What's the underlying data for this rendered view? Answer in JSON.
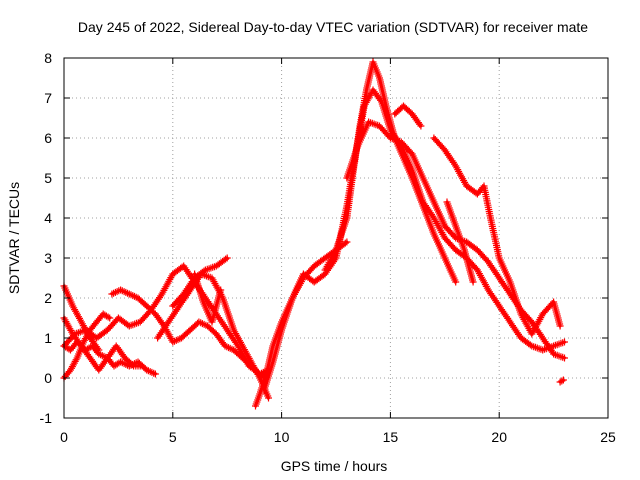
{
  "chart_data": {
    "type": "scatter",
    "title": "Day 245 of 2022, Sidereal Day-to-day VTEC variation (SDTVAR) for receiver mate",
    "xlabel": "GPS time / hours",
    "ylabel": "SDTVAR / TECUs",
    "xlim": [
      0,
      25
    ],
    "ylim": [
      -1,
      8
    ],
    "xticks": [
      0,
      5,
      10,
      15,
      20,
      25
    ],
    "yticks": [
      -1,
      0,
      1,
      2,
      3,
      4,
      5,
      6,
      7,
      8
    ],
    "xtick_labels": [
      "0",
      "5",
      "10",
      "15",
      "20",
      "25"
    ],
    "ytick_labels": [
      "-1",
      "0",
      "1",
      "2",
      "3",
      "4",
      "5",
      "6",
      "7",
      "8"
    ],
    "grid": true,
    "marker": "plus",
    "legend": "none",
    "series": [
      {
        "name": "track-a",
        "color": "#ff0000",
        "x": [
          0.0,
          0.3,
          0.6,
          1.0,
          1.3,
          1.6,
          2.0,
          2.3,
          2.6,
          3.0,
          3.4,
          3.8,
          4.2
        ],
        "y": [
          0.8,
          0.7,
          0.9,
          0.7,
          0.8,
          0.6,
          0.5,
          0.3,
          0.4,
          0.3,
          0.4,
          0.2,
          0.1
        ]
      },
      {
        "name": "track-b",
        "color": "#ff0000",
        "x": [
          0.0,
          0.4,
          0.8,
          1.2,
          1.6,
          2.0,
          2.4,
          2.8,
          3.2,
          3.6
        ],
        "y": [
          1.5,
          1.1,
          0.8,
          0.5,
          0.2,
          0.5,
          0.8,
          0.5,
          0.3,
          0.3
        ]
      },
      {
        "name": "track-c",
        "color": "#ff0000",
        "x": [
          0.0,
          0.3,
          0.6,
          0.9,
          1.2,
          1.5,
          1.8,
          2.1
        ],
        "y": [
          0.0,
          0.2,
          0.5,
          0.9,
          1.2,
          1.4,
          1.6,
          1.5
        ]
      },
      {
        "name": "track-d",
        "color": "#ff0000",
        "x": [
          0.0,
          0.4,
          0.8,
          1.2,
          1.6
        ],
        "y": [
          2.3,
          1.8,
          1.4,
          1.0,
          0.7
        ]
      },
      {
        "name": "track-e",
        "color": "#ff0000",
        "x": [
          0.0,
          0.5,
          1.0,
          1.5,
          2.0,
          2.5,
          3.0,
          3.5,
          4.0,
          4.5,
          5.0,
          5.5,
          6.0,
          6.5,
          7.0,
          7.5,
          8.0,
          8.5,
          9.0,
          9.3
        ],
        "y": [
          0.8,
          1.1,
          1.2,
          1.0,
          1.2,
          1.5,
          1.3,
          1.4,
          1.7,
          2.1,
          2.6,
          2.8,
          2.4,
          2.0,
          1.6,
          1.2,
          0.8,
          0.3,
          0.1,
          0.0
        ]
      },
      {
        "name": "track-f",
        "color": "#ff0000",
        "x": [
          2.2,
          2.6,
          3.0,
          3.4,
          3.8,
          4.2,
          4.6,
          5.0,
          5.4,
          5.8,
          6.2,
          6.6,
          7.0,
          7.4,
          7.8,
          8.2,
          8.6,
          9.0,
          9.4
        ],
        "y": [
          2.1,
          2.2,
          2.1,
          2.0,
          1.8,
          1.6,
          1.3,
          0.9,
          1.0,
          1.2,
          1.4,
          1.3,
          1.1,
          0.8,
          0.7,
          0.5,
          0.3,
          0.1,
          0.2
        ]
      },
      {
        "name": "track-g",
        "color": "#ff0000",
        "x": [
          4.3,
          4.8,
          5.3,
          5.8,
          6.3,
          6.8,
          7.3,
          7.8,
          8.2,
          8.6,
          9.0,
          9.4
        ],
        "y": [
          1.0,
          1.4,
          1.8,
          2.2,
          2.6,
          2.5,
          2.0,
          1.2,
          0.8,
          0.4,
          0.0,
          -0.5
        ]
      },
      {
        "name": "track-h",
        "color": "#ff0000",
        "x": [
          5.0,
          5.5,
          6.0,
          6.5,
          7.0,
          7.5
        ],
        "y": [
          1.8,
          2.1,
          2.5,
          2.7,
          2.8,
          3.0
        ]
      },
      {
        "name": "track-i",
        "color": "#ff0000",
        "x": [
          6.0,
          6.4,
          6.8,
          7.2
        ],
        "y": [
          2.6,
          1.9,
          1.4,
          2.2
        ]
      },
      {
        "name": "track-j",
        "color": "#ff0000",
        "x": [
          8.8,
          9.0,
          9.3,
          9.6,
          10.0,
          10.5,
          11.0,
          11.5,
          12.0,
          12.5,
          13.0
        ],
        "y": [
          -0.7,
          -0.4,
          0.1,
          0.8,
          1.4,
          2.0,
          2.5,
          2.8,
          3.0,
          3.2,
          3.4
        ]
      },
      {
        "name": "track-k",
        "color": "#ff0000",
        "x": [
          9.2,
          9.6,
          10.0,
          10.5,
          11.0,
          11.5,
          12.0,
          12.5,
          13.0,
          13.4,
          13.8,
          14.2,
          14.6,
          15.0,
          15.5,
          16.0,
          16.5,
          17.0,
          17.5,
          18.0,
          18.5,
          19.0,
          19.5,
          20.0,
          20.5,
          21.0,
          21.5,
          22.0,
          22.5,
          23.0
        ],
        "y": [
          -0.3,
          0.4,
          1.2,
          2.0,
          2.6,
          2.4,
          2.6,
          3.0,
          4.3,
          5.6,
          6.8,
          7.2,
          6.9,
          6.2,
          5.8,
          5.2,
          4.4,
          4.0,
          3.5,
          3.2,
          3.0,
          2.7,
          2.2,
          1.8,
          1.4,
          1.0,
          0.8,
          0.7,
          0.8,
          0.9
        ]
      },
      {
        "name": "track-l",
        "color": "#ff0000",
        "x": [
          12.0,
          12.5,
          13.0,
          13.3,
          13.6,
          13.9,
          14.2,
          14.5,
          14.8,
          15.2,
          15.6,
          16.0,
          16.5,
          17.0,
          17.5,
          18.0
        ],
        "y": [
          2.7,
          3.2,
          4.0,
          5.2,
          6.3,
          7.2,
          7.9,
          7.5,
          6.8,
          6.0,
          5.5,
          5.0,
          4.3,
          3.6,
          3.0,
          2.4
        ]
      },
      {
        "name": "track-m",
        "color": "#ff0000",
        "x": [
          13.0,
          13.5,
          14.0,
          14.5,
          15.0,
          15.5,
          16.0,
          16.5,
          17.0,
          17.5,
          18.0,
          18.5,
          19.0,
          19.5,
          20.0,
          20.5,
          21.0,
          21.5,
          22.0,
          22.5,
          23.0
        ],
        "y": [
          5.0,
          5.8,
          6.4,
          6.3,
          6.0,
          5.9,
          5.6,
          5.0,
          4.4,
          3.8,
          3.5,
          3.4,
          3.2,
          2.9,
          2.5,
          2.1,
          1.7,
          1.4,
          1.0,
          0.6,
          0.5
        ]
      },
      {
        "name": "track-n",
        "color": "#ff0000",
        "x": [
          15.2,
          15.6,
          16.0,
          16.4
        ],
        "y": [
          6.6,
          6.8,
          6.6,
          6.3
        ]
      },
      {
        "name": "track-o",
        "color": "#ff0000",
        "x": [
          17.0,
          17.5,
          18.0,
          18.5,
          19.0,
          19.3,
          19.6,
          20.0,
          20.5,
          21.0,
          21.5,
          22.0,
          22.5,
          22.8
        ],
        "y": [
          6.0,
          5.7,
          5.3,
          4.8,
          4.6,
          4.8,
          4.0,
          3.0,
          2.4,
          1.6,
          1.1,
          1.6,
          1.9,
          1.3
        ]
      },
      {
        "name": "track-p",
        "color": "#ff0000",
        "x": [
          17.6,
          18.0,
          18.4,
          18.8
        ],
        "y": [
          4.4,
          3.8,
          3.2,
          2.4
        ]
      },
      {
        "name": "track-q",
        "color": "#ff0000",
        "x": [
          22.8,
          22.95
        ],
        "y": [
          -0.1,
          -0.05
        ]
      }
    ]
  }
}
